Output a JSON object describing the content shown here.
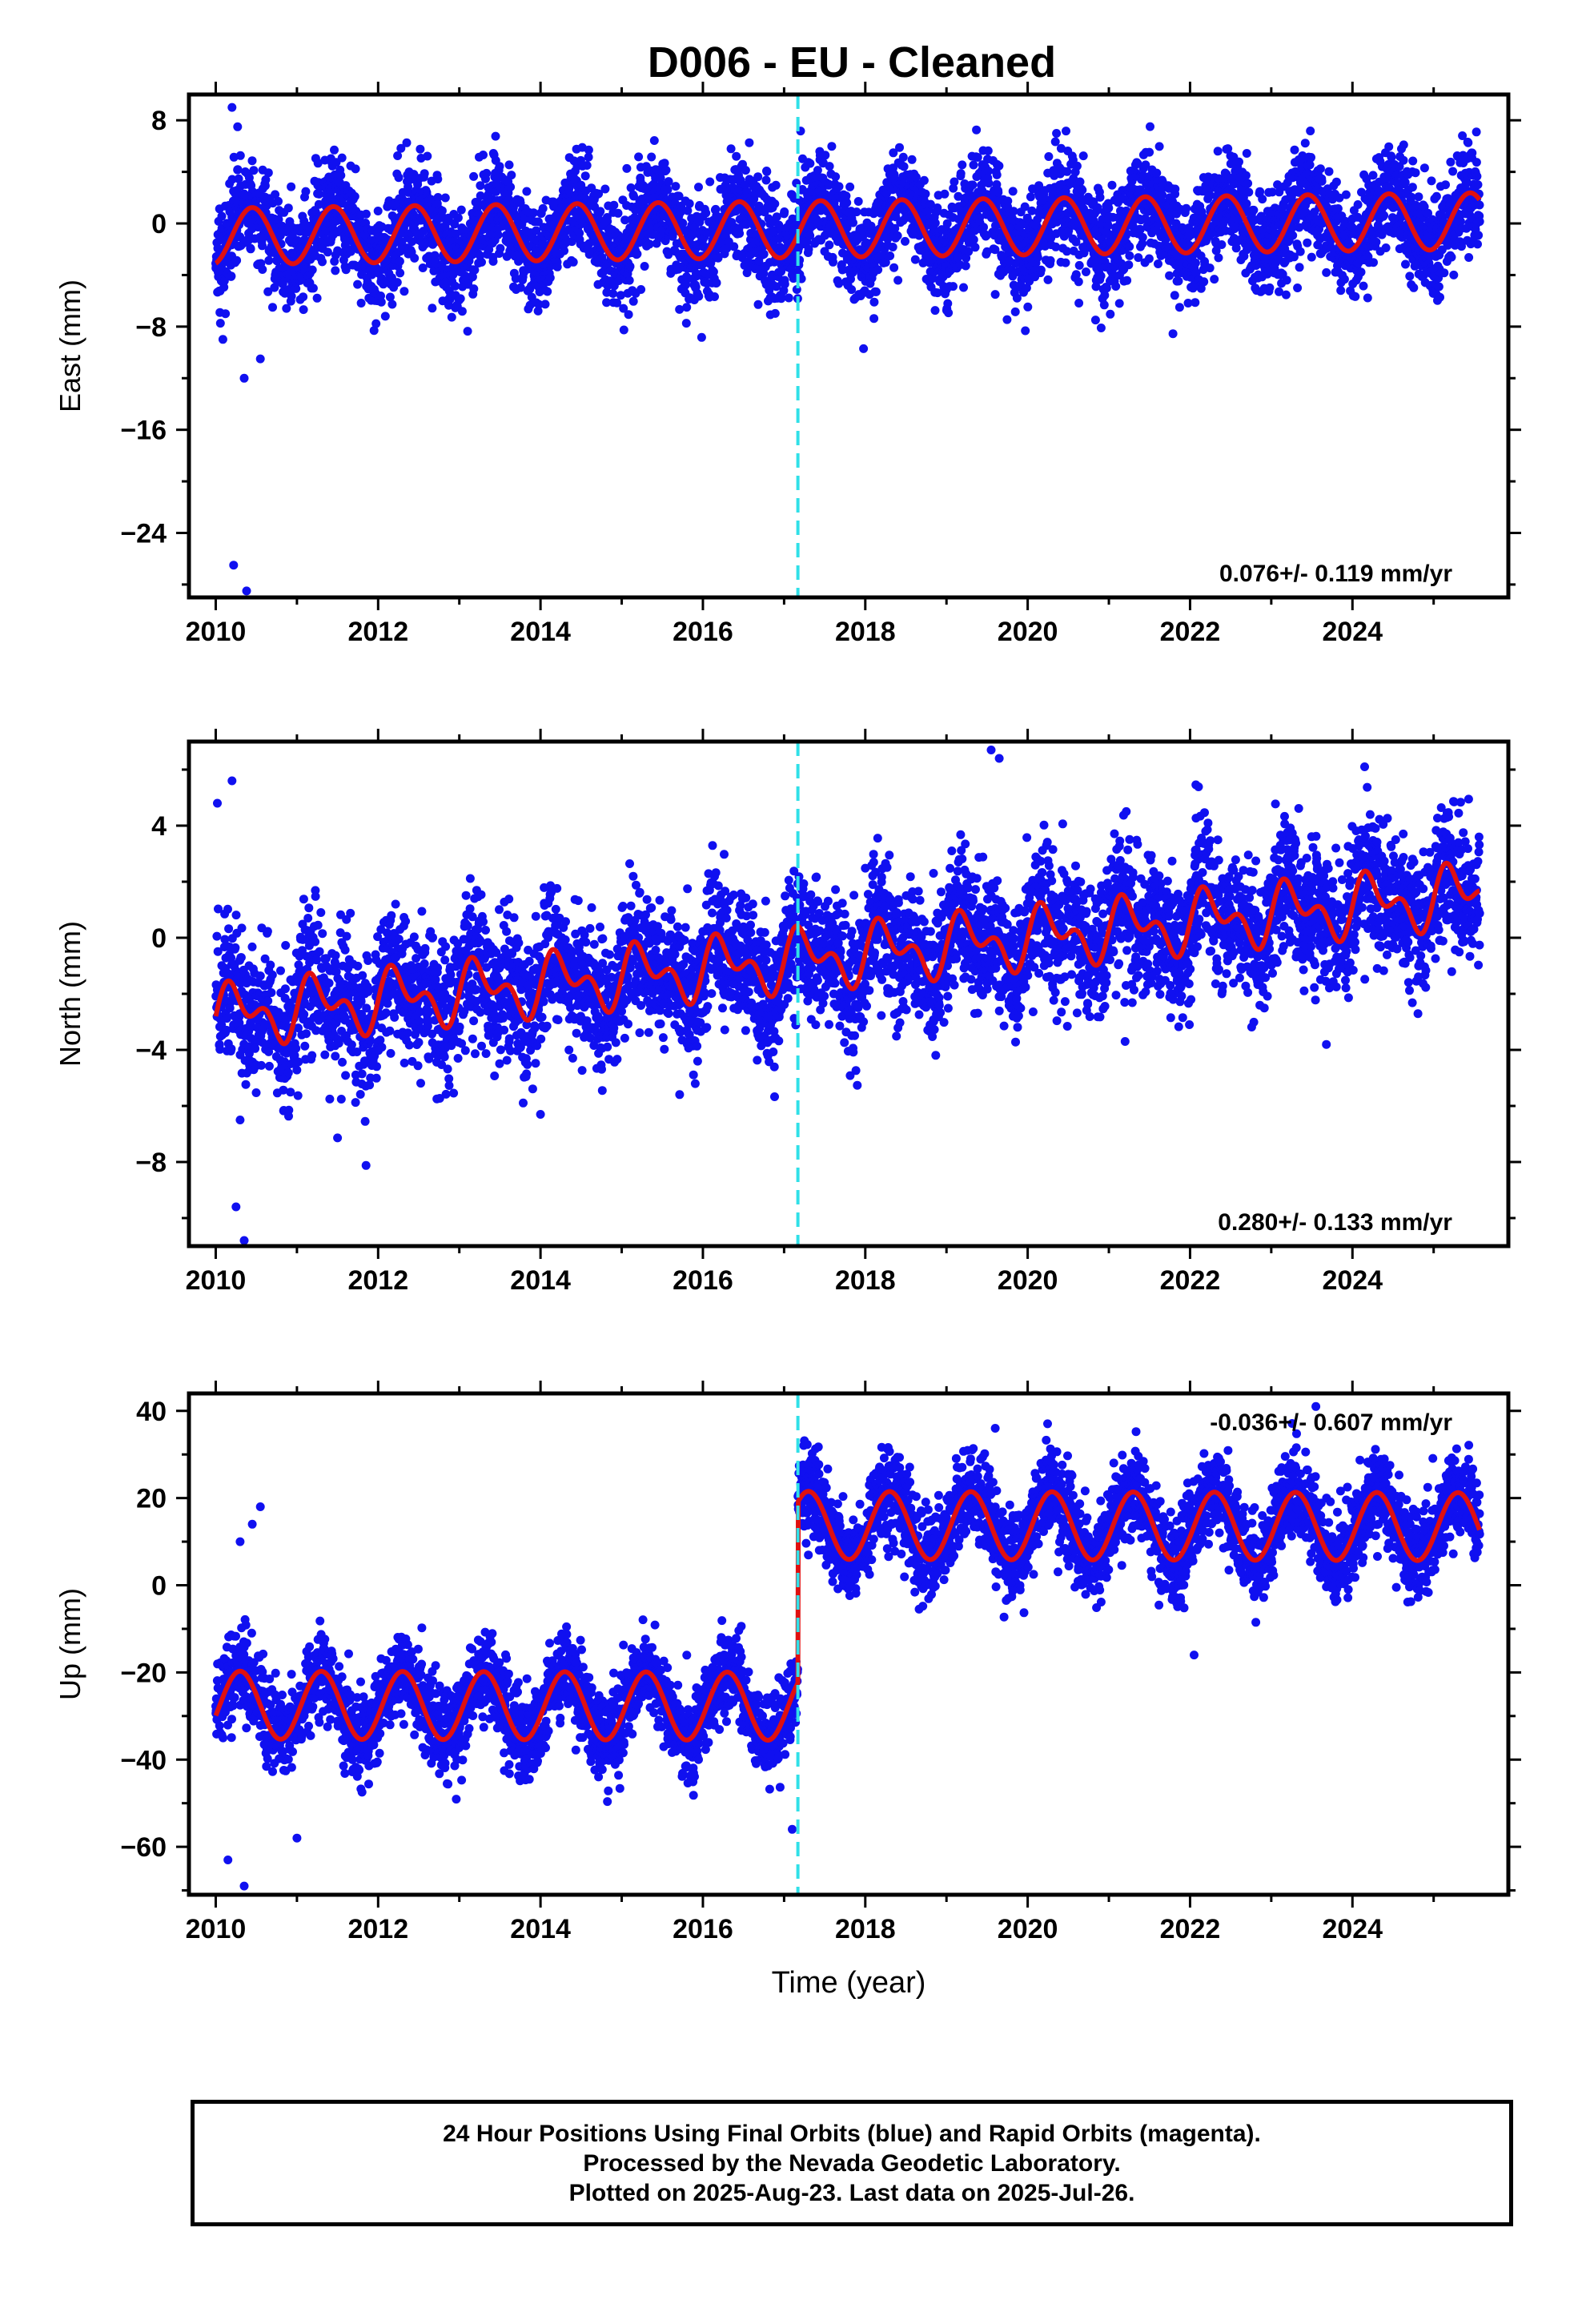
{
  "title": "D006  - EU - Cleaned",
  "colors": {
    "data": "#1010f0",
    "model": "#e01010",
    "offset": "#30e0e8",
    "frame": "#000000"
  },
  "footer": [
    "24 Hour Positions Using Final Orbits (blue) and Rapid Orbits (magenta).",
    "Processed by the Nevada Geodetic Laboratory.",
    "Plotted on 2025-Aug-23. Last data on 2025-Jul-26."
  ],
  "chart_data": [
    {
      "type": "scatter",
      "name": "east",
      "ylabel": "East (mm)",
      "xlabel": "",
      "xlim": [
        2009.67,
        2025.92
      ],
      "ylim": [
        -29,
        10
      ],
      "xticks": [
        2010,
        2012,
        2014,
        2016,
        2018,
        2020,
        2022,
        2024
      ],
      "yticks": [
        8,
        0,
        -8,
        -16,
        -24
      ],
      "ytick_labels": [
        "8",
        "0",
        "−8",
        "−16",
        "−24"
      ],
      "rate": "0.076+/- 0.119 mm/yr",
      "rate_position": "bottom-right",
      "offset_epoch": 2017.17,
      "model": {
        "intercept": -1.0,
        "rate": 0.076,
        "annual": 2.2,
        "annual_phase": 0.2,
        "semiannual": 0.0,
        "semiannual_phase": 0.0,
        "step": 0,
        "step_epoch": 2017.17
      },
      "scatter": 2.0,
      "outliers": [
        [
          2010.12,
          -7
        ],
        [
          2010.2,
          9.0
        ],
        [
          2010.27,
          7.5
        ],
        [
          2010.35,
          -12
        ],
        [
          2010.55,
          -10.5
        ],
        [
          2010.22,
          -26.5
        ],
        [
          2010.38,
          -28.5
        ],
        [
          2010.7,
          -6.5
        ],
        [
          2015.8,
          -6.5
        ],
        [
          2019.6,
          -5.5
        ]
      ]
    },
    {
      "type": "scatter",
      "name": "north",
      "ylabel": "North (mm)",
      "xlabel": "",
      "xlim": [
        2009.67,
        2025.92
      ],
      "ylim": [
        -11,
        7
      ],
      "xticks": [
        2010,
        2012,
        2014,
        2016,
        2018,
        2020,
        2022,
        2024
      ],
      "yticks": [
        4,
        0,
        -4,
        -8
      ],
      "ytick_labels": [
        "4",
        "0",
        "−4",
        "−8"
      ],
      "rate": "0.280+/- 0.133 mm/yr",
      "rate_position": "bottom-right",
      "offset_epoch": 2017.17,
      "model": {
        "intercept": -2.8,
        "rate": 0.28,
        "annual": 0.8,
        "annual_phase": 0.0,
        "semiannual": 0.6,
        "semiannual_phase": 0.0,
        "step": 0,
        "step_epoch": 2017.17
      },
      "scatter": 1.2,
      "outliers": [
        [
          2010.02,
          4.8
        ],
        [
          2010.2,
          5.6
        ],
        [
          2010.25,
          -9.6
        ],
        [
          2010.35,
          -10.8
        ],
        [
          2010.3,
          -6.5
        ],
        [
          2019.55,
          6.7
        ],
        [
          2019.65,
          6.4
        ],
        [
          2024.15,
          6.1
        ],
        [
          2021.2,
          -3.7
        ],
        [
          2014.0,
          -6.3
        ]
      ]
    },
    {
      "type": "scatter",
      "name": "up",
      "ylabel": "Up (mm)",
      "xlabel": "Time (year)",
      "xlim": [
        2009.67,
        2025.92
      ],
      "ylim": [
        -71,
        44
      ],
      "xticks": [
        2010,
        2012,
        2014,
        2016,
        2018,
        2020,
        2022,
        2024
      ],
      "yticks": [
        40,
        20,
        0,
        -20,
        -40,
        -60
      ],
      "ytick_labels": [
        "40",
        "20",
        "0",
        "−20",
        "−40",
        "−60"
      ],
      "rate": "-0.036+/- 0.607 mm/yr",
      "rate_position": "top-right",
      "offset_epoch": 2017.17,
      "model": {
        "intercept": -27.5,
        "rate": -0.036,
        "annual": 7.8,
        "annual_phase": 0.05,
        "semiannual": 0.0,
        "semiannual_phase": 0.0,
        "step": 41.5,
        "step_epoch": 2017.17
      },
      "scatter": 5.0,
      "outliers": [
        [
          2010.15,
          -63
        ],
        [
          2010.35,
          -69
        ],
        [
          2010.3,
          10
        ],
        [
          2010.55,
          18
        ],
        [
          2010.45,
          14
        ],
        [
          2017.1,
          -56
        ],
        [
          2023.55,
          41
        ],
        [
          2019.6,
          36
        ],
        [
          2022.05,
          -16
        ],
        [
          2011.0,
          -58
        ]
      ]
    }
  ]
}
